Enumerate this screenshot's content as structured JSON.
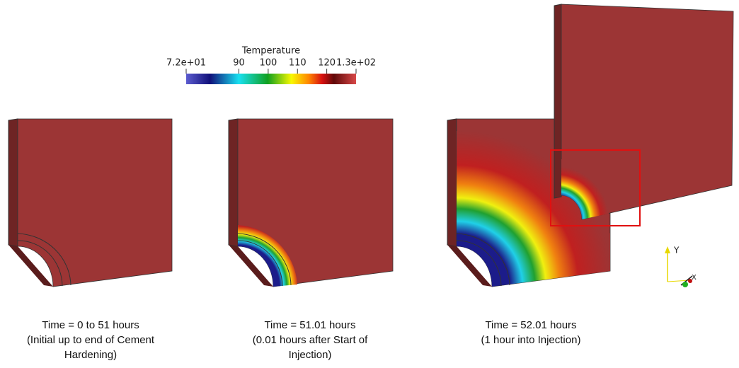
{
  "colorbar": {
    "title": "Temperature",
    "range": [
      72,
      130
    ],
    "ticks": [
      {
        "value": 72,
        "label": "7.2e+01"
      },
      90,
      100,
      110,
      120,
      {
        "value": 130,
        "label": "1.3e+02"
      }
    ]
  },
  "panels": [
    {
      "caption": [
        "Time = 0 to 51 hours",
        "(Initial up to end of Cement",
        "Hardening)"
      ]
    },
    {
      "caption": [
        "Time = 51.01 hours",
        "(0.01 hours after Start of",
        "Injection)"
      ]
    },
    {
      "caption": [
        "Time = 52.01 hours",
        "(1 hour into Injection)"
      ]
    }
  ],
  "axes": {
    "y": "Y",
    "x": "X"
  }
}
